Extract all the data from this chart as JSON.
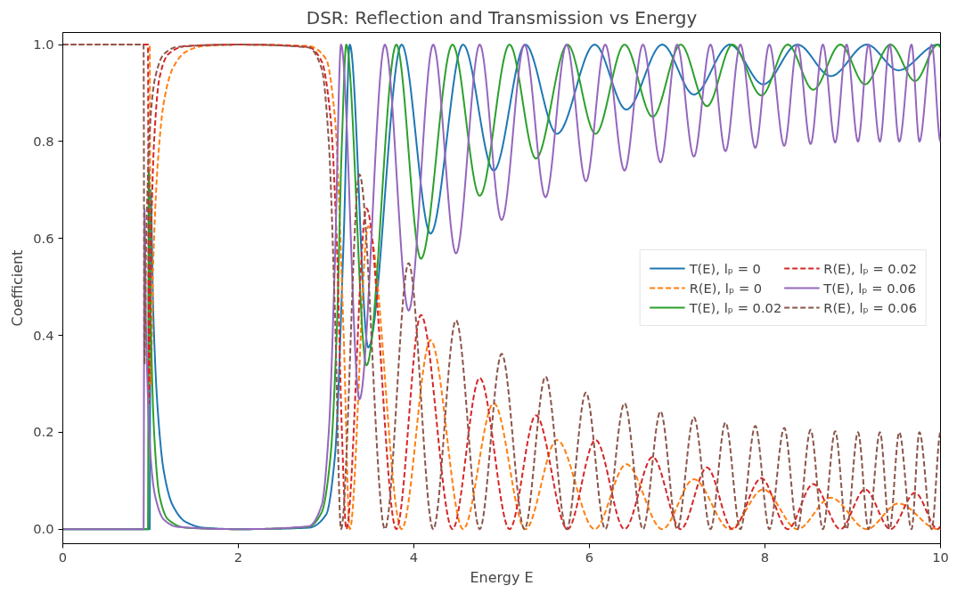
{
  "chart_data": {
    "type": "line",
    "title": "DSR: Reflection and Transmission vs Energy",
    "xlabel": "Energy E",
    "ylabel": "Coefficient",
    "xlim": [
      0,
      10
    ],
    "ylim": [
      -0.03,
      1.025
    ],
    "xticks": [
      0,
      2,
      4,
      6,
      8,
      10
    ],
    "yticks": [
      {
        "value": 0,
        "label": "0.0"
      },
      {
        "value": 0.2,
        "label": "0.2"
      },
      {
        "value": 0.4,
        "label": "0.4"
      },
      {
        "value": 0.6,
        "label": "0.6"
      },
      {
        "value": 0.8,
        "label": "0.8"
      },
      {
        "value": 1,
        "label": "1.0"
      }
    ],
    "grid": false,
    "legend": "right",
    "series": [
      {
        "name": "T(E), lₚ = 0",
        "color": "#1f77b4",
        "line_style": "solid",
        "x": [
          0,
          0.99,
          1.0,
          1.03,
          1.08,
          1.15,
          1.25,
          1.4,
          1.6,
          2.0,
          2.8,
          3.0,
          3.1,
          3.2,
          3.27,
          3.48,
          3.86,
          4.19,
          4.56,
          4.91,
          5.27,
          5.63,
          6.06,
          6.42,
          6.83,
          7.19,
          7.6,
          7.98,
          8.37,
          8.75,
          9.16,
          9.52,
          9.97,
          10
        ],
        "values": [
          0,
          0,
          0.7,
          0.45,
          0.25,
          0.12,
          0.05,
          0.015,
          0.003,
          0,
          0.003,
          0.03,
          0.15,
          0.6,
          1,
          0.375,
          1,
          0.61,
          1,
          0.74,
          1,
          0.816,
          1,
          0.866,
          1,
          0.897,
          1,
          0.918,
          1,
          0.935,
          1,
          0.947,
          1,
          0.999
        ]
      },
      {
        "name": "R(E), lₚ = 0",
        "color": "#ff7f0e",
        "line_style": "dashed",
        "x": [
          0,
          0.99,
          1.0,
          1.03,
          1.08,
          1.15,
          1.25,
          1.4,
          1.6,
          2.0,
          2.8,
          3.0,
          3.1,
          3.2,
          3.27,
          3.48,
          3.86,
          4.19,
          4.56,
          4.91,
          5.27,
          5.63,
          6.06,
          6.42,
          6.83,
          7.19,
          7.6,
          7.98,
          8.37,
          8.75,
          9.16,
          9.52,
          9.97,
          10
        ],
        "values": [
          1,
          1,
          0.3,
          0.55,
          0.75,
          0.88,
          0.95,
          0.985,
          0.997,
          1,
          0.997,
          0.97,
          0.85,
          0.4,
          0,
          0.625,
          0,
          0.39,
          0,
          0.26,
          0,
          0.184,
          0,
          0.134,
          0,
          0.103,
          0,
          0.082,
          0,
          0.065,
          0,
          0.053,
          0,
          0.001
        ]
      },
      {
        "name": "T(E), lₚ = 0.02",
        "color": "#2ca02c",
        "line_style": "solid",
        "x": [
          0,
          0.97,
          0.98,
          1.0,
          1.04,
          1.1,
          1.2,
          1.4,
          2.0,
          2.8,
          2.95,
          3.05,
          3.12,
          3.18,
          3.23,
          3.46,
          3.8,
          4.08,
          4.44,
          4.75,
          5.09,
          5.39,
          5.75,
          6.07,
          6.4,
          6.72,
          7.04,
          7.34,
          7.63,
          7.96,
          8.26,
          8.55,
          8.86,
          9.14,
          9.43,
          9.71,
          9.97,
          10
        ],
        "values": [
          0,
          0,
          0.74,
          0.45,
          0.2,
          0.07,
          0.02,
          0.003,
          0,
          0.005,
          0.035,
          0.15,
          0.4,
          0.8,
          1,
          0.338,
          1,
          0.558,
          1,
          0.688,
          1,
          0.765,
          1,
          0.816,
          1,
          0.851,
          1,
          0.873,
          1,
          0.895,
          1,
          0.907,
          1,
          0.918,
          1,
          0.925,
          1,
          0.995
        ]
      },
      {
        "name": "R(E), lₚ = 0.02",
        "color": "#d62728",
        "line_style": "dashed",
        "x": [
          0,
          0.97,
          0.98,
          1.0,
          1.04,
          1.1,
          1.2,
          1.4,
          2.0,
          2.8,
          2.95,
          3.05,
          3.12,
          3.18,
          3.23,
          3.46,
          3.8,
          4.08,
          4.44,
          4.75,
          5.09,
          5.39,
          5.75,
          6.07,
          6.4,
          6.72,
          7.04,
          7.34,
          7.63,
          7.96,
          8.26,
          8.55,
          8.86,
          9.14,
          9.43,
          9.71,
          9.97,
          10
        ],
        "values": [
          1,
          1,
          0.26,
          0.55,
          0.8,
          0.93,
          0.98,
          0.997,
          1,
          0.995,
          0.965,
          0.85,
          0.6,
          0.2,
          0,
          0.662,
          0,
          0.442,
          0,
          0.312,
          0,
          0.235,
          0,
          0.184,
          0,
          0.149,
          0,
          0.127,
          0,
          0.105,
          0,
          0.093,
          0,
          0.082,
          0,
          0.075,
          0,
          0.005
        ]
      },
      {
        "name": "T(E), lₚ = 0.06",
        "color": "#9467bd",
        "line_style": "solid",
        "x": [
          0,
          0.92,
          0.93,
          0.95,
          1.0,
          1.05,
          1.15,
          1.3,
          2.0,
          2.8,
          2.95,
          3.03,
          3.1,
          3.17,
          3.38,
          3.67,
          3.94,
          4.22,
          4.48,
          4.75,
          5.0,
          5.26,
          5.5,
          5.74,
          5.96,
          6.18,
          6.4,
          6.61,
          6.81,
          7.0,
          7.19,
          7.38,
          7.55,
          7.72,
          7.89,
          8.05,
          8.22,
          8.37,
          8.52,
          8.66,
          8.8,
          8.93,
          9.06,
          9.18,
          9.31,
          9.42,
          9.53,
          9.67,
          9.76,
          9.9,
          10
        ],
        "values": [
          0,
          0,
          0.66,
          0.4,
          0.15,
          0.07,
          0.02,
          0.005,
          0,
          0.006,
          0.05,
          0.2,
          0.55,
          1,
          0.268,
          1,
          0.451,
          1,
          0.569,
          1,
          0.638,
          1,
          0.685,
          1,
          0.718,
          1,
          0.74,
          1,
          0.757,
          1,
          0.769,
          1,
          0.78,
          1,
          0.787,
          1,
          0.791,
          1,
          0.795,
          1,
          0.798,
          1,
          0.8,
          1,
          0.8,
          1,
          0.8,
          1,
          0.8,
          1,
          0.8
        ]
      },
      {
        "name": "R(E), lₚ = 0.06",
        "color": "#8c564b",
        "line_style": "dashed",
        "x": [
          0,
          0.92,
          0.93,
          0.95,
          1.0,
          1.05,
          1.15,
          1.3,
          2.0,
          2.8,
          2.95,
          3.03,
          3.1,
          3.17,
          3.38,
          3.67,
          3.94,
          4.22,
          4.48,
          4.75,
          5.0,
          5.26,
          5.5,
          5.74,
          5.96,
          6.18,
          6.4,
          6.61,
          6.81,
          7.0,
          7.19,
          7.38,
          7.55,
          7.72,
          7.89,
          8.05,
          8.22,
          8.37,
          8.52,
          8.66,
          8.8,
          8.93,
          9.06,
          9.18,
          9.31,
          9.42,
          9.53,
          9.67,
          9.76,
          9.9,
          10
        ],
        "values": [
          1,
          1,
          0.34,
          0.6,
          0.85,
          0.93,
          0.98,
          0.995,
          1,
          0.994,
          0.95,
          0.8,
          0.45,
          0,
          0.732,
          0,
          0.549,
          0,
          0.431,
          0,
          0.362,
          0,
          0.315,
          0,
          0.282,
          0,
          0.26,
          0,
          0.243,
          0,
          0.231,
          0,
          0.22,
          0,
          0.213,
          0,
          0.209,
          0,
          0.205,
          0,
          0.202,
          0,
          0.2,
          0,
          0.2,
          0,
          0.2,
          0,
          0.2,
          0,
          0.2
        ]
      }
    ]
  }
}
